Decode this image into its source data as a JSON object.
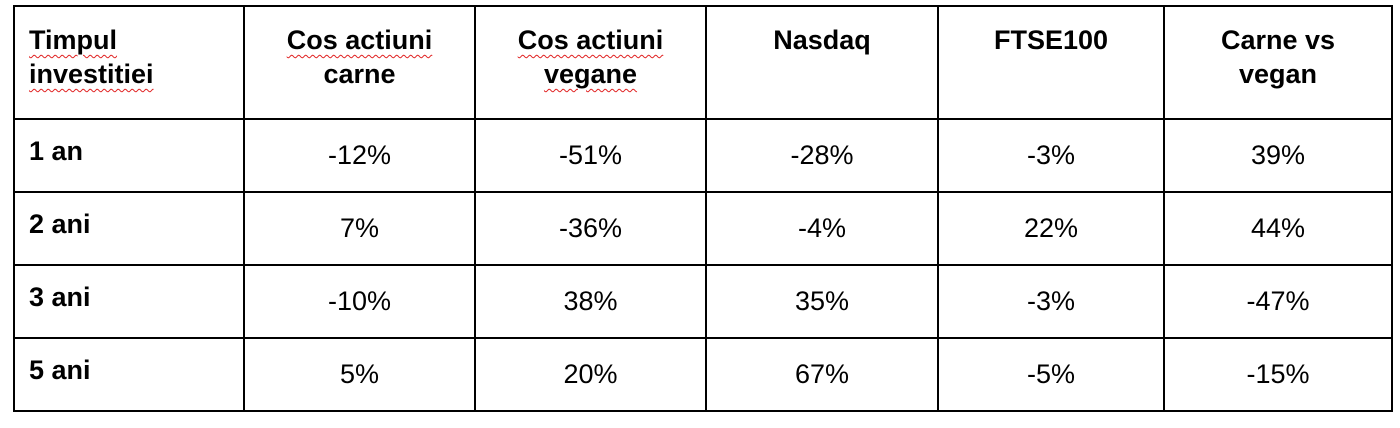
{
  "table": {
    "header": [
      [
        "Timpul",
        "investitiei"
      ],
      [
        "Cos actiuni",
        "carne"
      ],
      [
        "Cos actiuni",
        "vegane"
      ],
      [
        "Nasdaq"
      ],
      [
        "FTSE100"
      ],
      [
        "Carne vs",
        "vegan"
      ]
    ],
    "rows": [
      [
        "1 an",
        "-12%",
        "-51%",
        "-28%",
        "-3%",
        "39%"
      ],
      [
        "2 ani",
        "7%",
        "-36%",
        "-4%",
        "22%",
        "44%"
      ],
      [
        "3 ani",
        "-10%",
        "38%",
        "35%",
        "-3%",
        "-47%"
      ],
      [
        "5 ani",
        "5%",
        "20%",
        "67%",
        "-5%",
        "-15%"
      ]
    ]
  }
}
